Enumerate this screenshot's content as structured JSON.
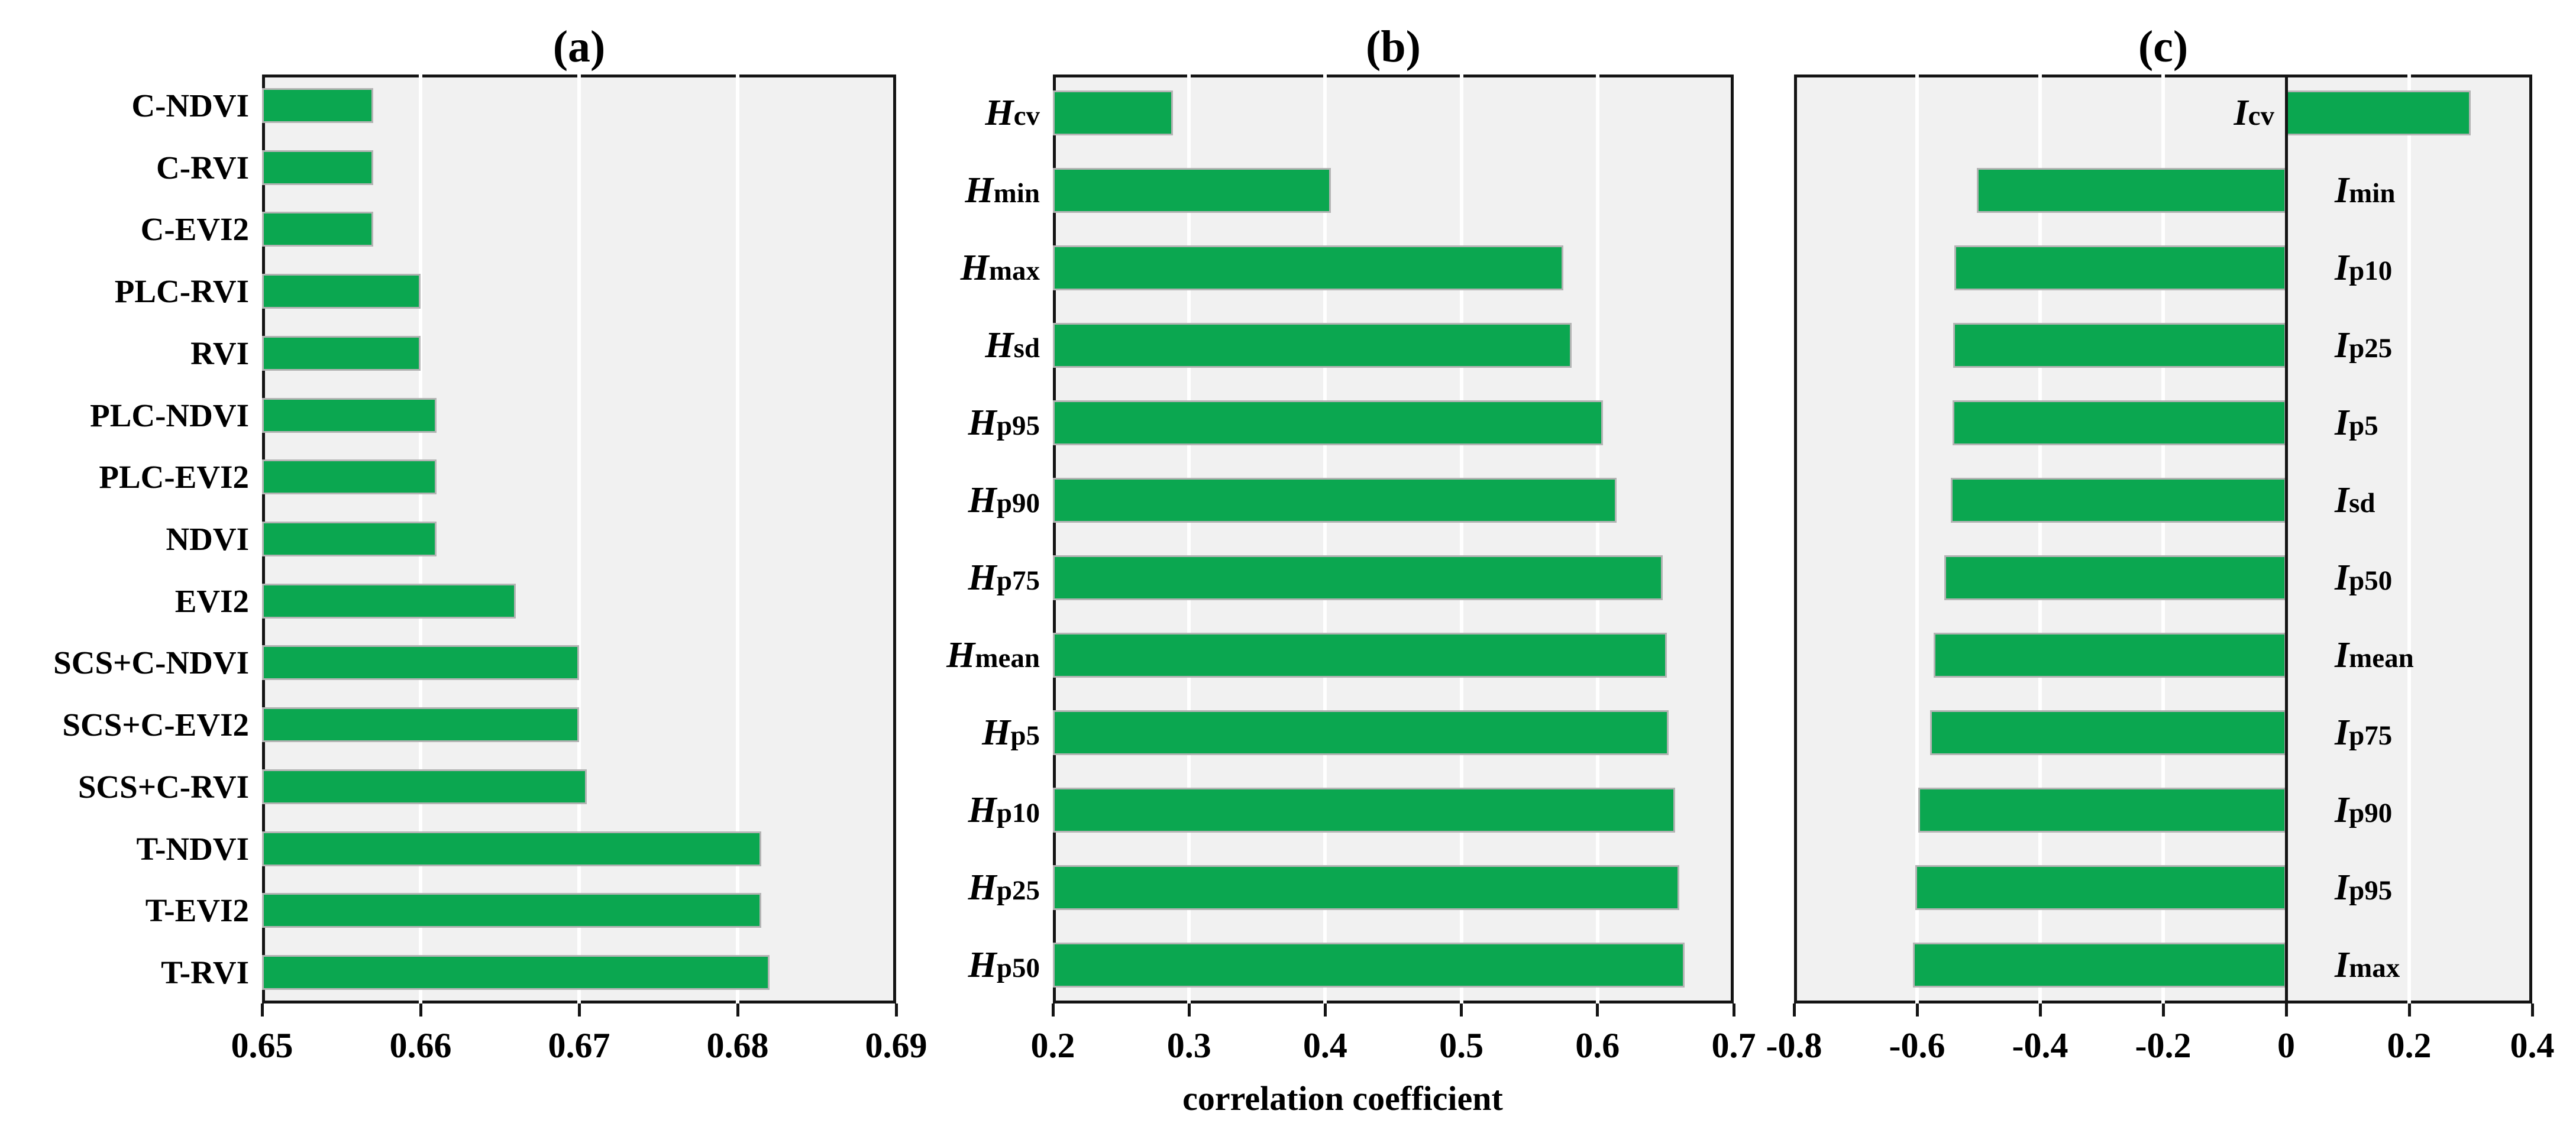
{
  "figure": {
    "x_axis_label": "correlation coefficient",
    "bar_color": "#0ba750",
    "plot_background": "#f1f1f1",
    "frame_color": "#141414"
  },
  "chart_data": [
    {
      "type": "bar",
      "orientation": "horizontal",
      "panel_label": "(a)",
      "xlabel": "",
      "xlim": [
        0.65,
        0.69
      ],
      "xticks": [
        "0.65",
        "0.66",
        "0.67",
        "0.68",
        "0.69"
      ],
      "grid": "white vertical gridlines on light-gray background",
      "legend": "none",
      "categories": [
        "C-NDVI",
        "C-RVI",
        "C-EVI2",
        "PLC-RVI",
        "RVI",
        "PLC-NDVI",
        "PLC-EVI2",
        "NDVI",
        "EVI2",
        "SCS+C-NDVI",
        "SCS+C-EVI2",
        "SCS+C-RVI",
        "T-NDVI",
        "T-EVI2",
        "T-RVI"
      ],
      "values": [
        0.657,
        0.657,
        0.657,
        0.66,
        0.66,
        0.661,
        0.661,
        0.661,
        0.666,
        0.67,
        0.67,
        0.6705,
        0.6815,
        0.6815,
        0.682
      ]
    },
    {
      "type": "bar",
      "orientation": "horizontal",
      "panel_label": "(b)",
      "xlabel": "correlation coefficient",
      "xlim": [
        0.2,
        0.7
      ],
      "xticks": [
        "0.2",
        "0.3",
        "0.4",
        "0.5",
        "0.6",
        "0.7"
      ],
      "grid": "white vertical gridlines on light-gray background",
      "legend": "none",
      "categories": [
        {
          "prefix": "H",
          "suffix": "cv"
        },
        {
          "prefix": "H",
          "suffix": "min"
        },
        {
          "prefix": "H",
          "suffix": "max"
        },
        {
          "prefix": "H",
          "suffix": "sd"
        },
        {
          "prefix": "H",
          "suffix": "p95"
        },
        {
          "prefix": "H",
          "suffix": "p90"
        },
        {
          "prefix": "H",
          "suffix": "p75"
        },
        {
          "prefix": "H",
          "suffix": "mean"
        },
        {
          "prefix": "H",
          "suffix": "p5"
        },
        {
          "prefix": "H",
          "suffix": "p10"
        },
        {
          "prefix": "H",
          "suffix": "p25"
        },
        {
          "prefix": "H",
          "suffix": "p50"
        }
      ],
      "values": [
        0.288,
        0.404,
        0.575,
        0.581,
        0.604,
        0.614,
        0.648,
        0.651,
        0.652,
        0.657,
        0.66,
        0.664
      ]
    },
    {
      "type": "bar",
      "orientation": "horizontal",
      "panel_label": "(c)",
      "xlabel": "",
      "xlim": [
        -0.8,
        0.4
      ],
      "xticks": [
        "-0.8",
        "-0.6",
        "-0.4",
        "-0.2",
        "0",
        "0.2",
        "0.4"
      ],
      "grid": "white vertical gridlines on light-gray background, black line at zero",
      "legend": "none",
      "categories": [
        {
          "prefix": "I",
          "suffix": "cv"
        },
        {
          "prefix": "I",
          "suffix": "min"
        },
        {
          "prefix": "I",
          "suffix": "p10"
        },
        {
          "prefix": "I",
          "suffix": "p25"
        },
        {
          "prefix": "I",
          "suffix": "p5"
        },
        {
          "prefix": "I",
          "suffix": "sd"
        },
        {
          "prefix": "I",
          "suffix": "p50"
        },
        {
          "prefix": "I",
          "suffix": "mean"
        },
        {
          "prefix": "I",
          "suffix": "p75"
        },
        {
          "prefix": "I",
          "suffix": "p90"
        },
        {
          "prefix": "I",
          "suffix": "p95"
        },
        {
          "prefix": "I",
          "suffix": "max"
        }
      ],
      "values": [
        0.3,
        -0.503,
        -0.539,
        -0.541,
        -0.542,
        -0.545,
        -0.556,
        -0.573,
        -0.579,
        -0.598,
        -0.603,
        -0.607
      ]
    }
  ]
}
